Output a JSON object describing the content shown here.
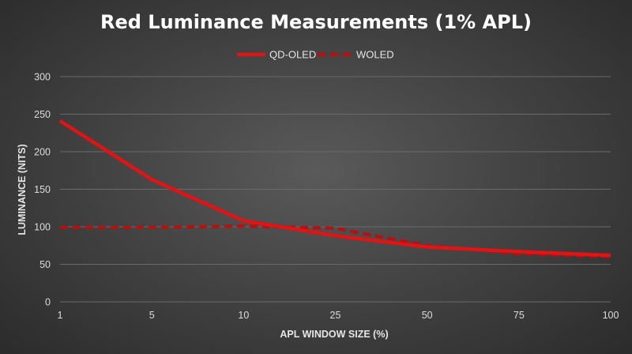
{
  "chart_data": {
    "type": "line",
    "title": "Red Luminance Measurements (1% APL)",
    "xlabel": "APL WINDOW SIZE (%)",
    "ylabel": "LUMINANCE (NITS)",
    "categories": [
      "1",
      "5",
      "10",
      "25",
      "50",
      "75",
      "100"
    ],
    "ylim": [
      0,
      300
    ],
    "yticks": [
      0,
      50,
      100,
      150,
      200,
      250,
      300
    ],
    "grid": true,
    "legend_position": "top-center",
    "series": [
      {
        "name": "QD-OLED",
        "style": "solid",
        "color": "#e01414",
        "values": [
          241,
          163,
          108,
          88,
          73,
          67,
          62
        ]
      },
      {
        "name": "WOLED",
        "style": "dashed",
        "color": "#b80f0f",
        "values": [
          99,
          99,
          101,
          98,
          75,
          64,
          60
        ]
      }
    ]
  },
  "colors": {
    "gridline": "#6a6a6a",
    "text": "#dcdcdc"
  }
}
